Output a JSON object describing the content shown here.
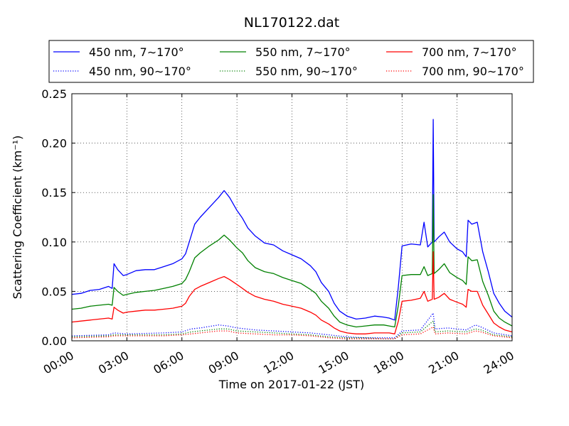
{
  "chart_data": {
    "type": "line",
    "title": "NL170122.dat",
    "xlabel": "Time on 2017-01-22 (JST)",
    "ylabel": "Scattering Coefficient (km⁻¹)",
    "x_unit": "hour",
    "xlim": [
      0,
      24
    ],
    "ylim": [
      0,
      0.25
    ],
    "x_ticks": [
      0,
      3,
      6,
      9,
      12,
      15,
      18,
      21,
      24
    ],
    "x_tick_labels": [
      "00:00",
      "03:00",
      "06:00",
      "09:00",
      "12:00",
      "15:00",
      "18:00",
      "21:00",
      "24:00"
    ],
    "y_ticks": [
      0,
      0.05,
      0.1,
      0.15,
      0.2,
      0.25
    ],
    "y_tick_labels": [
      "0.00",
      "0.05",
      "0.10",
      "0.15",
      "0.20",
      "0.25"
    ],
    "grid": true,
    "legend_position": "top",
    "legend_columns": 3,
    "series": [
      {
        "name": "450 nm, 7∼170°",
        "color": "#0000ff",
        "style": "solid",
        "points": [
          [
            0,
            0.047
          ],
          [
            0.5,
            0.048
          ],
          [
            1,
            0.051
          ],
          [
            1.5,
            0.052
          ],
          [
            2,
            0.055
          ],
          [
            2.2,
            0.053
          ],
          [
            2.3,
            0.078
          ],
          [
            2.5,
            0.072
          ],
          [
            2.8,
            0.066
          ],
          [
            3,
            0.067
          ],
          [
            3.5,
            0.071
          ],
          [
            4,
            0.072
          ],
          [
            4.5,
            0.072
          ],
          [
            5,
            0.075
          ],
          [
            5.5,
            0.078
          ],
          [
            6,
            0.083
          ],
          [
            6.2,
            0.088
          ],
          [
            6.4,
            0.1
          ],
          [
            6.7,
            0.118
          ],
          [
            7,
            0.125
          ],
          [
            7.5,
            0.135
          ],
          [
            8,
            0.145
          ],
          [
            8.3,
            0.152
          ],
          [
            8.6,
            0.145
          ],
          [
            9,
            0.132
          ],
          [
            9.3,
            0.124
          ],
          [
            9.6,
            0.114
          ],
          [
            10,
            0.106
          ],
          [
            10.5,
            0.099
          ],
          [
            11,
            0.097
          ],
          [
            11.5,
            0.091
          ],
          [
            12,
            0.087
          ],
          [
            12.5,
            0.083
          ],
          [
            13,
            0.076
          ],
          [
            13.3,
            0.07
          ],
          [
            13.6,
            0.059
          ],
          [
            14,
            0.05
          ],
          [
            14.3,
            0.038
          ],
          [
            14.6,
            0.03
          ],
          [
            15,
            0.025
          ],
          [
            15.5,
            0.022
          ],
          [
            16,
            0.023
          ],
          [
            16.5,
            0.025
          ],
          [
            17,
            0.024
          ],
          [
            17.3,
            0.023
          ],
          [
            17.6,
            0.021
          ],
          [
            17.8,
            0.055
          ],
          [
            18,
            0.096
          ],
          [
            18.5,
            0.098
          ],
          [
            19,
            0.097
          ],
          [
            19.2,
            0.12
          ],
          [
            19.4,
            0.095
          ],
          [
            19.65,
            0.1
          ],
          [
            19.7,
            0.224
          ],
          [
            19.75,
            0.1
          ],
          [
            20,
            0.105
          ],
          [
            20.3,
            0.11
          ],
          [
            20.6,
            0.1
          ],
          [
            21,
            0.093
          ],
          [
            21.3,
            0.09
          ],
          [
            21.5,
            0.085
          ],
          [
            21.6,
            0.122
          ],
          [
            21.8,
            0.118
          ],
          [
            22.1,
            0.12
          ],
          [
            22.4,
            0.09
          ],
          [
            22.7,
            0.07
          ],
          [
            23,
            0.048
          ],
          [
            23.3,
            0.038
          ],
          [
            23.6,
            0.03
          ],
          [
            24,
            0.024
          ]
        ]
      },
      {
        "name": "550 nm, 7∼170°",
        "color": "#008000",
        "style": "solid",
        "points": [
          [
            0,
            0.032
          ],
          [
            0.5,
            0.033
          ],
          [
            1,
            0.035
          ],
          [
            1.5,
            0.036
          ],
          [
            2,
            0.037
          ],
          [
            2.2,
            0.036
          ],
          [
            2.3,
            0.054
          ],
          [
            2.5,
            0.05
          ],
          [
            2.8,
            0.046
          ],
          [
            3,
            0.047
          ],
          [
            3.5,
            0.049
          ],
          [
            4,
            0.05
          ],
          [
            4.5,
            0.051
          ],
          [
            5,
            0.053
          ],
          [
            5.5,
            0.055
          ],
          [
            6,
            0.058
          ],
          [
            6.2,
            0.062
          ],
          [
            6.4,
            0.07
          ],
          [
            6.7,
            0.084
          ],
          [
            7,
            0.089
          ],
          [
            7.5,
            0.096
          ],
          [
            8,
            0.102
          ],
          [
            8.3,
            0.107
          ],
          [
            8.6,
            0.102
          ],
          [
            9,
            0.094
          ],
          [
            9.3,
            0.089
          ],
          [
            9.6,
            0.081
          ],
          [
            10,
            0.074
          ],
          [
            10.5,
            0.07
          ],
          [
            11,
            0.068
          ],
          [
            11.5,
            0.064
          ],
          [
            12,
            0.061
          ],
          [
            12.5,
            0.058
          ],
          [
            13,
            0.052
          ],
          [
            13.3,
            0.048
          ],
          [
            13.6,
            0.04
          ],
          [
            14,
            0.033
          ],
          [
            14.3,
            0.025
          ],
          [
            14.6,
            0.019
          ],
          [
            15,
            0.016
          ],
          [
            15.5,
            0.014
          ],
          [
            16,
            0.015
          ],
          [
            16.5,
            0.016
          ],
          [
            17,
            0.016
          ],
          [
            17.3,
            0.015
          ],
          [
            17.6,
            0.014
          ],
          [
            17.8,
            0.036
          ],
          [
            18,
            0.066
          ],
          [
            18.5,
            0.067
          ],
          [
            19,
            0.067
          ],
          [
            19.2,
            0.075
          ],
          [
            19.4,
            0.066
          ],
          [
            19.65,
            0.068
          ],
          [
            19.7,
            0.148
          ],
          [
            19.75,
            0.068
          ],
          [
            20,
            0.072
          ],
          [
            20.3,
            0.078
          ],
          [
            20.6,
            0.069
          ],
          [
            21,
            0.064
          ],
          [
            21.3,
            0.061
          ],
          [
            21.5,
            0.057
          ],
          [
            21.6,
            0.085
          ],
          [
            21.8,
            0.081
          ],
          [
            22.1,
            0.082
          ],
          [
            22.4,
            0.06
          ],
          [
            22.7,
            0.046
          ],
          [
            23,
            0.03
          ],
          [
            23.3,
            0.023
          ],
          [
            23.6,
            0.019
          ],
          [
            24,
            0.015
          ]
        ]
      },
      {
        "name": "700 nm, 7∼170°",
        "color": "#ff0000",
        "style": "solid",
        "points": [
          [
            0,
            0.019
          ],
          [
            0.5,
            0.02
          ],
          [
            1,
            0.021
          ],
          [
            1.5,
            0.022
          ],
          [
            2,
            0.023
          ],
          [
            2.2,
            0.022
          ],
          [
            2.3,
            0.034
          ],
          [
            2.5,
            0.031
          ],
          [
            2.8,
            0.028
          ],
          [
            3,
            0.029
          ],
          [
            3.5,
            0.03
          ],
          [
            4,
            0.031
          ],
          [
            4.5,
            0.031
          ],
          [
            5,
            0.032
          ],
          [
            5.5,
            0.033
          ],
          [
            6,
            0.035
          ],
          [
            6.2,
            0.038
          ],
          [
            6.4,
            0.045
          ],
          [
            6.7,
            0.052
          ],
          [
            7,
            0.055
          ],
          [
            7.5,
            0.059
          ],
          [
            8,
            0.063
          ],
          [
            8.3,
            0.065
          ],
          [
            8.6,
            0.062
          ],
          [
            9,
            0.057
          ],
          [
            9.3,
            0.053
          ],
          [
            9.6,
            0.049
          ],
          [
            10,
            0.045
          ],
          [
            10.5,
            0.042
          ],
          [
            11,
            0.04
          ],
          [
            11.5,
            0.037
          ],
          [
            12,
            0.035
          ],
          [
            12.5,
            0.033
          ],
          [
            13,
            0.029
          ],
          [
            13.3,
            0.026
          ],
          [
            13.6,
            0.021
          ],
          [
            14,
            0.017
          ],
          [
            14.3,
            0.013
          ],
          [
            14.6,
            0.01
          ],
          [
            15,
            0.008
          ],
          [
            15.5,
            0.007
          ],
          [
            16,
            0.007
          ],
          [
            16.5,
            0.008
          ],
          [
            17,
            0.008
          ],
          [
            17.3,
            0.008
          ],
          [
            17.6,
            0.007
          ],
          [
            17.8,
            0.02
          ],
          [
            18,
            0.04
          ],
          [
            18.5,
            0.041
          ],
          [
            19,
            0.043
          ],
          [
            19.2,
            0.05
          ],
          [
            19.4,
            0.04
          ],
          [
            19.65,
            0.042
          ],
          [
            19.7,
            0.09
          ],
          [
            19.75,
            0.042
          ],
          [
            20,
            0.044
          ],
          [
            20.3,
            0.048
          ],
          [
            20.6,
            0.042
          ],
          [
            21,
            0.039
          ],
          [
            21.3,
            0.037
          ],
          [
            21.5,
            0.034
          ],
          [
            21.6,
            0.052
          ],
          [
            21.8,
            0.05
          ],
          [
            22.1,
            0.05
          ],
          [
            22.4,
            0.036
          ],
          [
            22.7,
            0.027
          ],
          [
            23,
            0.018
          ],
          [
            23.3,
            0.014
          ],
          [
            23.6,
            0.011
          ],
          [
            24,
            0.009
          ]
        ]
      },
      {
        "name": "450 nm, 90∼170°",
        "color": "#0000ff",
        "style": "dotted",
        "points": [
          [
            0,
            0.005
          ],
          [
            2,
            0.006
          ],
          [
            2.3,
            0.008
          ],
          [
            3,
            0.007
          ],
          [
            5,
            0.008
          ],
          [
            6,
            0.009
          ],
          [
            6.5,
            0.012
          ],
          [
            7,
            0.013
          ],
          [
            8,
            0.016
          ],
          [
            8.5,
            0.015
          ],
          [
            9,
            0.013
          ],
          [
            10,
            0.011
          ],
          [
            11,
            0.01
          ],
          [
            12,
            0.009
          ],
          [
            13,
            0.008
          ],
          [
            14,
            0.006
          ],
          [
            15,
            0.004
          ],
          [
            16,
            0.003
          ],
          [
            17,
            0.003
          ],
          [
            17.6,
            0.003
          ],
          [
            18,
            0.01
          ],
          [
            19,
            0.011
          ],
          [
            19.7,
            0.028
          ],
          [
            19.8,
            0.012
          ],
          [
            20.5,
            0.013
          ],
          [
            21.5,
            0.011
          ],
          [
            22,
            0.016
          ],
          [
            22.3,
            0.014
          ],
          [
            23,
            0.008
          ],
          [
            24,
            0.005
          ]
        ]
      },
      {
        "name": "550 nm, 90∼170°",
        "color": "#008000",
        "style": "dotted",
        "points": [
          [
            0,
            0.004
          ],
          [
            2,
            0.005
          ],
          [
            2.3,
            0.006
          ],
          [
            3,
            0.006
          ],
          [
            5,
            0.006
          ],
          [
            6,
            0.007
          ],
          [
            6.5,
            0.009
          ],
          [
            7,
            0.01
          ],
          [
            8,
            0.012
          ],
          [
            8.5,
            0.012
          ],
          [
            9,
            0.01
          ],
          [
            10,
            0.009
          ],
          [
            11,
            0.008
          ],
          [
            12,
            0.007
          ],
          [
            13,
            0.006
          ],
          [
            14,
            0.004
          ],
          [
            15,
            0.003
          ],
          [
            16,
            0.003
          ],
          [
            17,
            0.002
          ],
          [
            17.6,
            0.002
          ],
          [
            18,
            0.008
          ],
          [
            19,
            0.009
          ],
          [
            19.7,
            0.02
          ],
          [
            19.8,
            0.009
          ],
          [
            20.5,
            0.01
          ],
          [
            21.5,
            0.009
          ],
          [
            22,
            0.012
          ],
          [
            22.3,
            0.011
          ],
          [
            23,
            0.006
          ],
          [
            24,
            0.004
          ]
        ]
      },
      {
        "name": "700 nm, 90∼170°",
        "color": "#ff0000",
        "style": "dotted",
        "points": [
          [
            0,
            0.003
          ],
          [
            2,
            0.004
          ],
          [
            2.3,
            0.005
          ],
          [
            3,
            0.005
          ],
          [
            5,
            0.005
          ],
          [
            6,
            0.006
          ],
          [
            6.5,
            0.007
          ],
          [
            7,
            0.008
          ],
          [
            8,
            0.01
          ],
          [
            8.5,
            0.01
          ],
          [
            9,
            0.008
          ],
          [
            10,
            0.007
          ],
          [
            11,
            0.006
          ],
          [
            12,
            0.006
          ],
          [
            13,
            0.005
          ],
          [
            14,
            0.003
          ],
          [
            15,
            0.002
          ],
          [
            16,
            0.002
          ],
          [
            17,
            0.002
          ],
          [
            17.6,
            0.002
          ],
          [
            18,
            0.006
          ],
          [
            19,
            0.007
          ],
          [
            19.7,
            0.014
          ],
          [
            19.8,
            0.007
          ],
          [
            20.5,
            0.008
          ],
          [
            21.5,
            0.007
          ],
          [
            22,
            0.01
          ],
          [
            22.3,
            0.009
          ],
          [
            23,
            0.005
          ],
          [
            24,
            0.003
          ]
        ]
      }
    ]
  }
}
